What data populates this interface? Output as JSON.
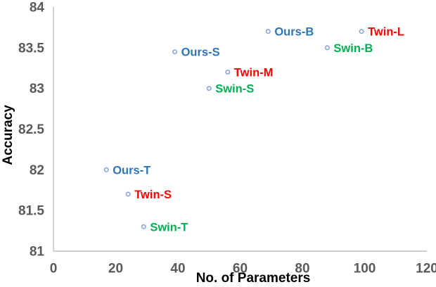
{
  "chart_data": {
    "type": "scatter",
    "title": "",
    "xlabel": "No. of Parameters",
    "ylabel": "Accuracy",
    "xlim": [
      0,
      120
    ],
    "ylim": [
      81,
      84
    ],
    "grid": false,
    "legend_position": "none (labels inline next to points)",
    "xticks": [
      {
        "value": 0,
        "label": "0"
      },
      {
        "value": 20,
        "label": "20"
      },
      {
        "value": 40,
        "label": "40"
      },
      {
        "value": 60,
        "label": "60"
      },
      {
        "value": 80,
        "label": "80"
      },
      {
        "value": 100,
        "label": "100"
      },
      {
        "value": 120,
        "label": "120"
      }
    ],
    "yticks": [
      {
        "value": 81,
        "label": "81"
      },
      {
        "value": 81.5,
        "label": "81.5"
      },
      {
        "value": 82,
        "label": "82"
      },
      {
        "value": 82.5,
        "label": "82.5"
      },
      {
        "value": 83,
        "label": "83"
      },
      {
        "value": 83.5,
        "label": "83.5"
      },
      {
        "value": 84,
        "label": "84"
      }
    ],
    "marker": {
      "shape": "circle",
      "stroke": "#8EA9DB",
      "fill": "#FFFFFF"
    },
    "series": [
      {
        "name": "Ours",
        "label_color": "#2E75B6",
        "points": [
          {
            "label": "Ours-T",
            "x": 17,
            "y": 82.0
          },
          {
            "label": "Ours-S",
            "x": 39,
            "y": 83.45
          },
          {
            "label": "Ours-B",
            "x": 69,
            "y": 83.7
          }
        ]
      },
      {
        "name": "Twin",
        "label_color": "#FF0000",
        "points": [
          {
            "label": "Twin-S",
            "x": 24,
            "y": 81.7
          },
          {
            "label": "Twin-M",
            "x": 56,
            "y": 83.2
          },
          {
            "label": "Twin-L",
            "x": 99,
            "y": 83.7
          }
        ]
      },
      {
        "name": "Swin",
        "label_color": "#00B050",
        "points": [
          {
            "label": "Swin-T",
            "x": 29,
            "y": 81.3
          },
          {
            "label": "Swin-S",
            "x": 50,
            "y": 83.0
          },
          {
            "label": "Swin-B",
            "x": 88,
            "y": 83.5
          }
        ]
      }
    ],
    "colors": {
      "axis_line": "#BFBFBF",
      "tick_label": "#595959",
      "axis_title": "#000000"
    }
  }
}
